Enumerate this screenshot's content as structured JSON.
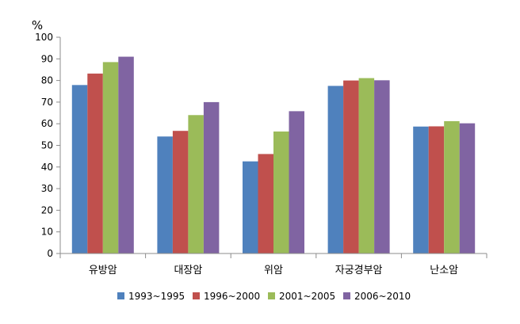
{
  "chart_data": {
    "type": "bar",
    "title": "",
    "xlabel": "",
    "ylabel": "%",
    "ylim": [
      0,
      100
    ],
    "yticks": [
      0,
      10,
      20,
      30,
      40,
      50,
      60,
      70,
      80,
      90,
      100
    ],
    "grid": false,
    "legend_position": "bottom",
    "categories": [
      "유방암",
      "대장암",
      "위암",
      "자궁경부암",
      "난소암"
    ],
    "series": [
      {
        "name": "1993~1995",
        "color": "#4F81BD",
        "values": [
          77.9,
          54.1,
          42.6,
          77.5,
          58.7
        ]
      },
      {
        "name": "1996~2000",
        "color": "#C0504D",
        "values": [
          83.2,
          56.7,
          46.0,
          80.0,
          58.8
        ]
      },
      {
        "name": "2001~2005",
        "color": "#9BBB59",
        "values": [
          88.5,
          64.0,
          56.4,
          81.1,
          61.2
        ]
      },
      {
        "name": "2006~2010",
        "color": "#8064A2",
        "values": [
          91.0,
          70.0,
          65.8,
          80.1,
          60.2
        ]
      }
    ]
  }
}
